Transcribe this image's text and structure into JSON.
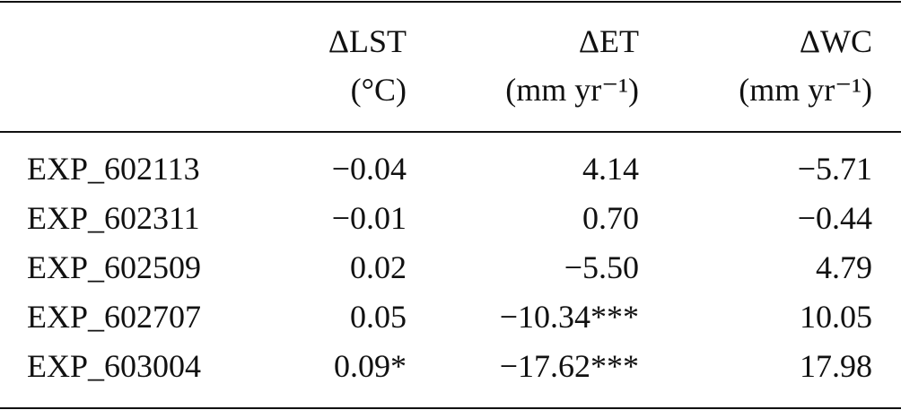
{
  "table": {
    "header": [
      {
        "name": "ΔLST",
        "unit": "(°C)"
      },
      {
        "name": "ΔET",
        "unit": "(mm yr⁻¹)"
      },
      {
        "name": "ΔWC",
        "unit": "(mm yr⁻¹)"
      }
    ],
    "rows": [
      [
        "EXP_602113",
        "−0.04",
        "4.14",
        "−5.71"
      ],
      [
        "EXP_602311",
        "−0.01",
        "0.70",
        "−0.44"
      ],
      [
        "EXP_602509",
        "0.02",
        "−5.50",
        "4.79"
      ],
      [
        "EXP_602707",
        "0.05",
        "−10.34***",
        "10.05"
      ],
      [
        "EXP_603004",
        "0.09*",
        "−17.62***",
        "17.98"
      ]
    ]
  }
}
